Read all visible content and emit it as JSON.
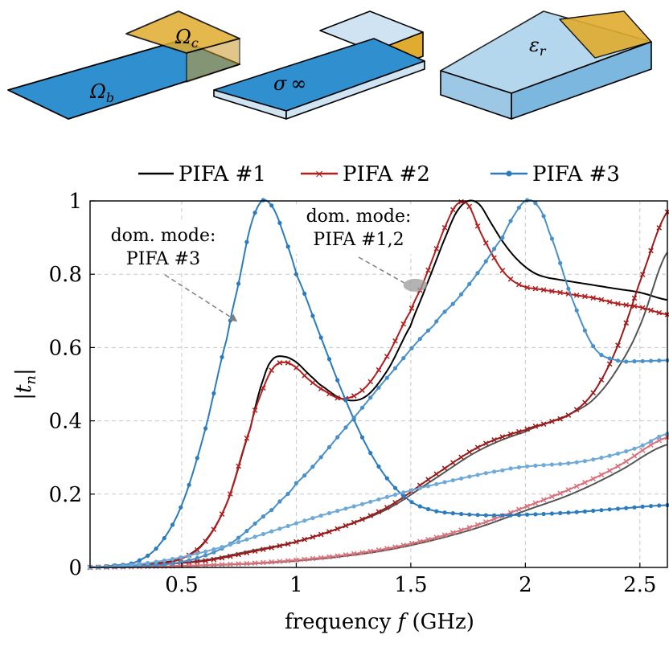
{
  "figure": {
    "panels": [
      {
        "name": "ground-plane",
        "symbol": "Ω",
        "subscript": "b"
      },
      {
        "name": "conductor",
        "symbol": "σ",
        "suffix": "∞"
      },
      {
        "name": "dielectric",
        "symbol": "ε",
        "subscript": "r"
      }
    ],
    "patch_symbol": "Ω",
    "patch_subscript": "c"
  },
  "colors": {
    "pifa1": "#000000",
    "pifa2": "#b21f1f",
    "pifa3": "#2b7bbd",
    "pifa2_light": "#d9707a",
    "pifa3_light": "#6fa9d8",
    "metal_blue": "#2f8fcf",
    "gold": "#e0ac2f"
  },
  "chart_data": {
    "type": "line",
    "xlabel": "frequency f (GHz)",
    "xlabel_prefix": "frequency",
    "xlabel_var": "f",
    "xlabel_unit": "(GHz)",
    "ylabel": "|t_n|",
    "ylabel_var": "t",
    "ylabel_sub": "n",
    "xlim": [
      0.1,
      2.62
    ],
    "ylim": [
      0,
      1.0
    ],
    "xticks": [
      0.5,
      1,
      1.5,
      2,
      2.5
    ],
    "xtick_labels": [
      "0.5",
      "1",
      "1.5",
      "2",
      "2.5"
    ],
    "yticks": [
      0,
      0.2,
      0.4,
      0.6,
      0.8,
      1
    ],
    "ytick_labels": [
      "0",
      "0.2",
      "0.4",
      "0.6",
      "0.8",
      "1"
    ],
    "grid": true,
    "legend": [
      {
        "label": "PIFA #1",
        "marker": "none",
        "color": "#000000"
      },
      {
        "label": "PIFA #2",
        "marker": "x",
        "color": "#b21f1f"
      },
      {
        "label": "PIFA #3",
        "marker": "dot",
        "color": "#2b7bbd"
      }
    ],
    "annotations": [
      {
        "name": "annot-pifa3",
        "lines": [
          "dom. mode:",
          "PIFA #3"
        ],
        "x": 0.75,
        "y": 0.69
      },
      {
        "name": "annot-pifa12",
        "lines": [
          "dom. mode:",
          "PIFA #1,2"
        ],
        "x": 1.52,
        "y": 0.77
      }
    ],
    "series": [
      {
        "name": "PIFA #1 mode 1",
        "group": "PIFA #1",
        "color": "#000000",
        "marker": "none",
        "x": [
          0.1,
          0.3,
          0.4,
          0.5,
          0.6,
          0.7,
          0.8,
          0.86,
          0.9,
          0.95,
          1.0,
          1.05,
          1.1,
          1.2,
          1.3,
          1.4,
          1.5,
          1.55,
          1.6,
          1.65,
          1.7,
          1.75,
          1.8,
          1.85,
          1.9,
          1.95,
          2.0,
          2.05,
          2.1,
          2.2,
          2.3,
          2.4,
          2.5,
          2.62
        ],
        "y": [
          0.0,
          0.006,
          0.012,
          0.025,
          0.07,
          0.18,
          0.38,
          0.52,
          0.57,
          0.575,
          0.56,
          0.53,
          0.5,
          0.46,
          0.465,
          0.54,
          0.66,
          0.74,
          0.82,
          0.9,
          0.97,
          1.0,
          0.99,
          0.94,
          0.89,
          0.85,
          0.82,
          0.8,
          0.79,
          0.78,
          0.77,
          0.76,
          0.75,
          0.73
        ]
      },
      {
        "name": "PIFA #1 mode 2",
        "group": "PIFA #1",
        "color": "#555555",
        "marker": "none",
        "x": [
          0.1,
          0.4,
          0.6,
          0.8,
          1.0,
          1.2,
          1.4,
          1.6,
          1.8,
          2.0,
          2.1,
          2.2,
          2.3,
          2.4,
          2.5,
          2.62
        ],
        "y": [
          0.0,
          0.008,
          0.02,
          0.045,
          0.07,
          0.11,
          0.16,
          0.24,
          0.32,
          0.37,
          0.395,
          0.42,
          0.46,
          0.54,
          0.66,
          0.86
        ]
      },
      {
        "name": "PIFA #1 mode 3",
        "group": "PIFA #1",
        "color": "#555555",
        "marker": "none",
        "x": [
          0.1,
          0.5,
          0.8,
          1.0,
          1.2,
          1.4,
          1.6,
          1.8,
          2.0,
          2.2,
          2.4,
          2.62
        ],
        "y": [
          0.0,
          0.004,
          0.01,
          0.018,
          0.03,
          0.048,
          0.075,
          0.11,
          0.155,
          0.2,
          0.26,
          0.335
        ]
      },
      {
        "name": "PIFA #2 mode 1",
        "group": "PIFA #2",
        "color": "#b21f1f",
        "marker": "x",
        "x": [
          0.1,
          0.3,
          0.4,
          0.5,
          0.6,
          0.7,
          0.8,
          0.85,
          0.9,
          0.95,
          1.0,
          1.05,
          1.1,
          1.2,
          1.3,
          1.4,
          1.5,
          1.55,
          1.6,
          1.65,
          1.7,
          1.75,
          1.8,
          1.85,
          1.9,
          1.95,
          2.0,
          2.05,
          2.1,
          2.2,
          2.3,
          2.4,
          2.5,
          2.62
        ],
        "y": [
          0.0,
          0.005,
          0.011,
          0.024,
          0.068,
          0.18,
          0.38,
          0.48,
          0.545,
          0.56,
          0.545,
          0.515,
          0.49,
          0.46,
          0.49,
          0.58,
          0.7,
          0.77,
          0.85,
          0.93,
          0.99,
          0.99,
          0.92,
          0.86,
          0.81,
          0.78,
          0.765,
          0.76,
          0.755,
          0.745,
          0.735,
          0.72,
          0.71,
          0.69
        ]
      },
      {
        "name": "PIFA #2 mode 2",
        "group": "PIFA #2",
        "color": "#9b1a1a",
        "marker": "x",
        "x": [
          0.1,
          0.4,
          0.6,
          0.8,
          1.0,
          1.2,
          1.4,
          1.6,
          1.8,
          2.0,
          2.1,
          2.2,
          2.3,
          2.4,
          2.5,
          2.62
        ],
        "y": [
          0.0,
          0.008,
          0.018,
          0.042,
          0.07,
          0.11,
          0.165,
          0.25,
          0.33,
          0.375,
          0.395,
          0.42,
          0.48,
          0.6,
          0.78,
          0.97
        ]
      },
      {
        "name": "PIFA #2 mode 3",
        "group": "PIFA #2",
        "color": "#d9707a",
        "marker": "x",
        "x": [
          0.1,
          0.5,
          0.8,
          1.0,
          1.2,
          1.4,
          1.6,
          1.8,
          2.0,
          2.2,
          2.4,
          2.62
        ],
        "y": [
          0.0,
          0.004,
          0.011,
          0.02,
          0.033,
          0.052,
          0.08,
          0.118,
          0.165,
          0.215,
          0.275,
          0.355
        ]
      },
      {
        "name": "PIFA #3 mode 1",
        "group": "PIFA #3",
        "color": "#2b7bbd",
        "marker": "dot",
        "x": [
          0.1,
          0.2,
          0.3,
          0.4,
          0.5,
          0.6,
          0.7,
          0.75,
          0.8,
          0.85,
          0.9,
          0.95,
          1.0,
          1.1,
          1.2,
          1.3,
          1.4,
          1.5,
          1.6,
          1.7,
          1.8,
          1.9,
          2.0,
          2.2,
          2.4,
          2.62
        ],
        "y": [
          0.0,
          0.005,
          0.015,
          0.06,
          0.17,
          0.37,
          0.63,
          0.78,
          0.93,
          1.0,
          0.98,
          0.9,
          0.8,
          0.64,
          0.48,
          0.34,
          0.24,
          0.18,
          0.155,
          0.147,
          0.143,
          0.142,
          0.144,
          0.15,
          0.16,
          0.17
        ]
      },
      {
        "name": "PIFA #3 mode 2",
        "group": "PIFA #3",
        "color": "#4a90c8",
        "marker": "dot",
        "x": [
          0.1,
          0.3,
          0.5,
          0.7,
          0.9,
          1.0,
          1.2,
          1.4,
          1.6,
          1.7,
          1.8,
          1.9,
          1.95,
          2.0,
          2.05,
          2.1,
          2.2,
          2.3,
          2.4,
          2.5,
          2.62
        ],
        "y": [
          0.0,
          0.004,
          0.015,
          0.06,
          0.16,
          0.23,
          0.37,
          0.52,
          0.66,
          0.73,
          0.81,
          0.9,
          0.96,
          1.0,
          0.99,
          0.92,
          0.74,
          0.6,
          0.565,
          0.563,
          0.565
        ]
      },
      {
        "name": "PIFA #3 mode 3",
        "group": "PIFA #3",
        "color": "#6fa9d8",
        "marker": "dot",
        "x": [
          0.1,
          0.3,
          0.5,
          0.7,
          0.9,
          1.1,
          1.3,
          1.5,
          1.7,
          1.9,
          2.0,
          2.1,
          2.2,
          2.3,
          2.4,
          2.5,
          2.62
        ],
        "y": [
          0.0,
          0.008,
          0.028,
          0.06,
          0.1,
          0.14,
          0.175,
          0.21,
          0.24,
          0.265,
          0.275,
          0.28,
          0.285,
          0.295,
          0.31,
          0.33,
          0.365
        ]
      }
    ]
  }
}
